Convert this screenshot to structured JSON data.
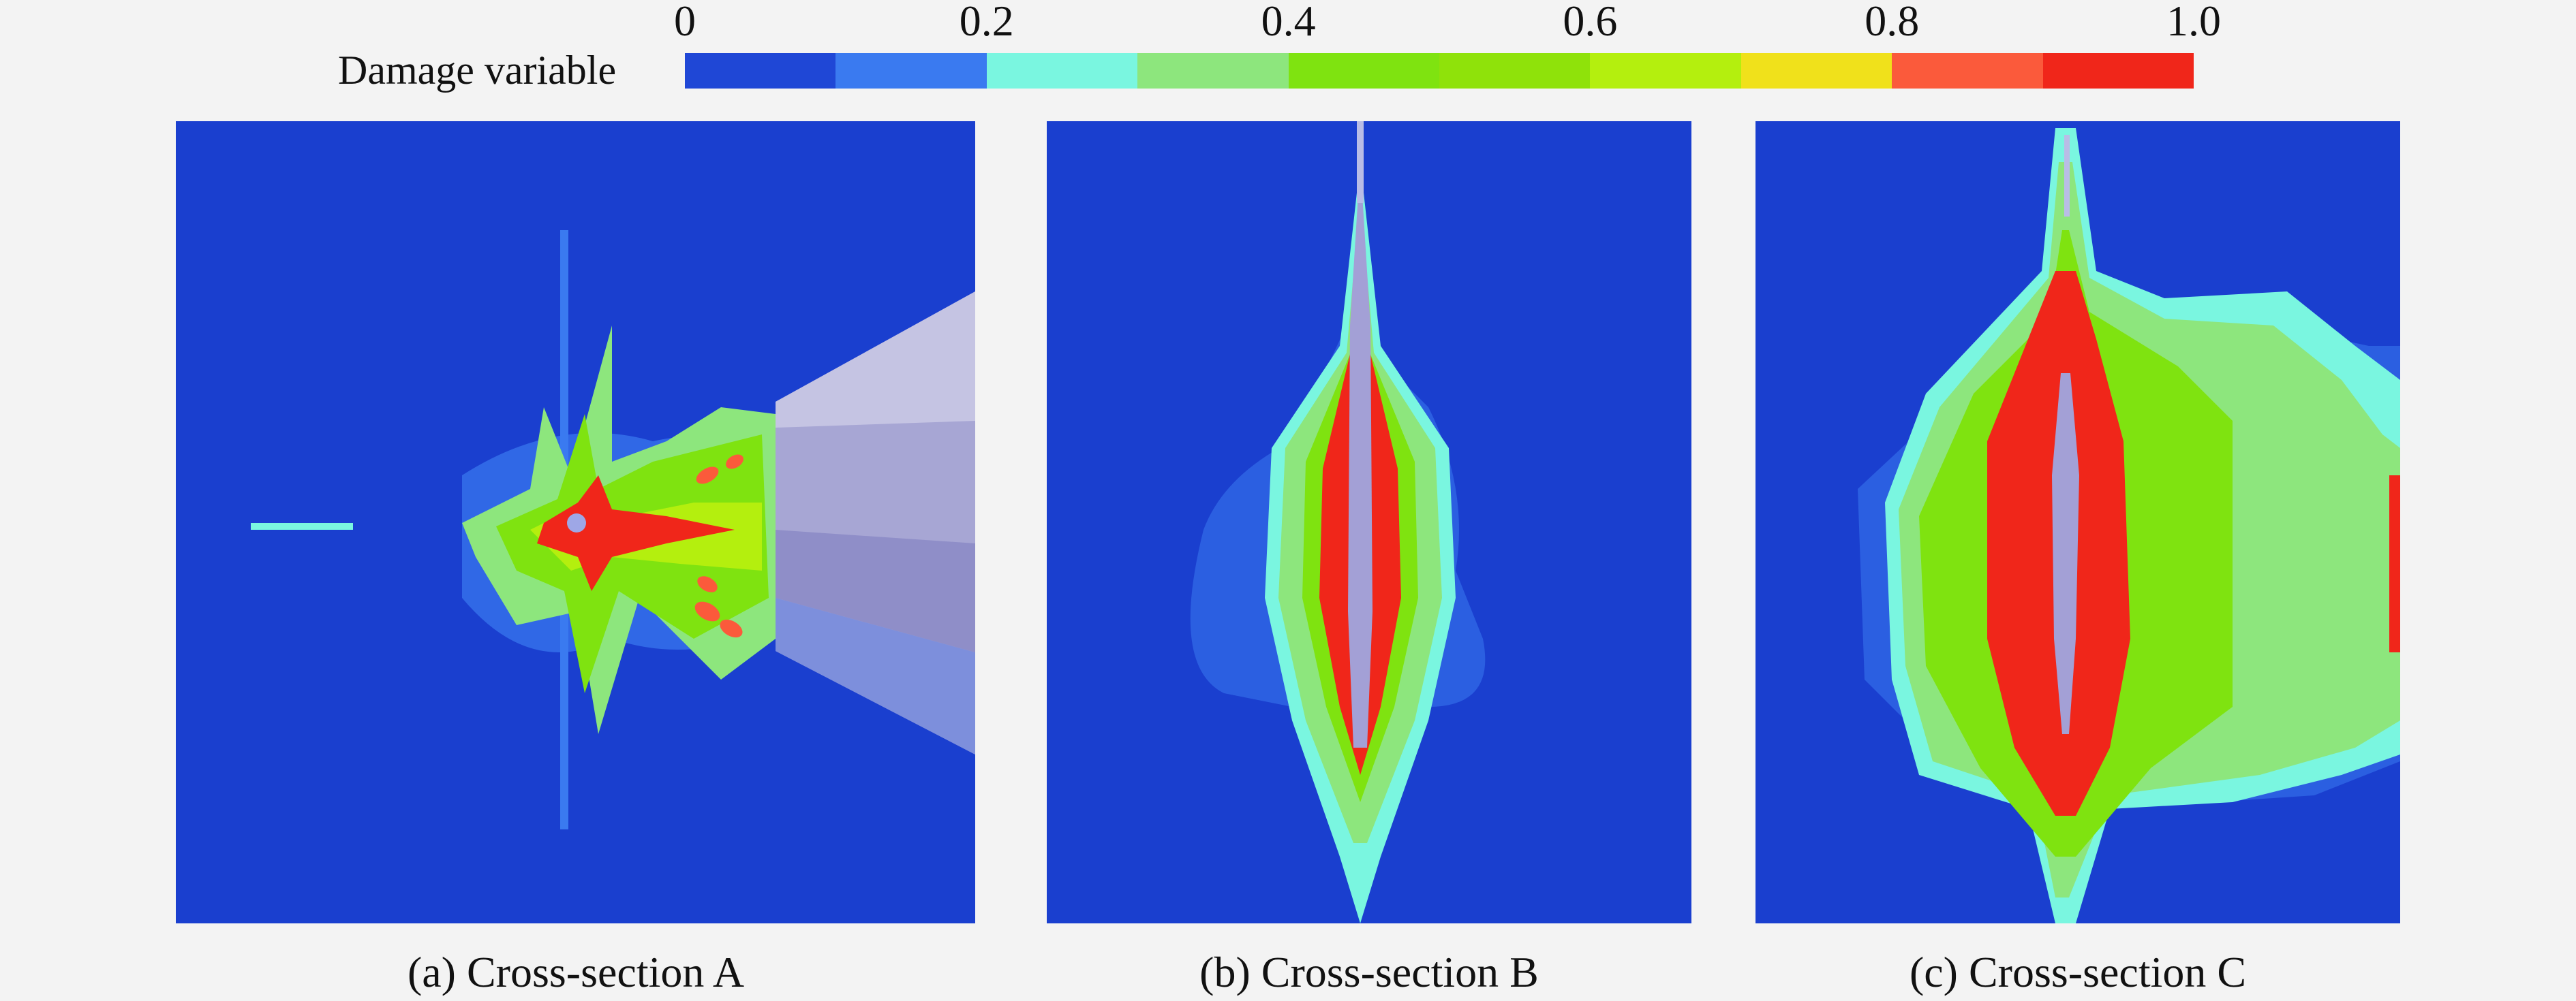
{
  "legend": {
    "title": "Damage variable",
    "ticks": [
      "0",
      "0.2",
      "0.4",
      "0.6",
      "0.8",
      "1.0"
    ],
    "colors": [
      "#1f47d6",
      "#3a7af0",
      "#7af6e0",
      "#8de67d",
      "#7fe310",
      "#8fe20a",
      "#b4ef0e",
      "#f0e11b",
      "#fb5a3b",
      "#f0261a"
    ]
  },
  "panels": [
    {
      "caption": "(a) Cross-section A"
    },
    {
      "caption": "(b) Cross-section B"
    },
    {
      "caption": "(c) Cross-section C"
    }
  ],
  "chart_data": {
    "type": "heatmap",
    "colorbar": {
      "label": "Damage variable",
      "range": [
        0,
        1.0
      ],
      "ticks": [
        0,
        0.2,
        0.4,
        0.6,
        0.8,
        1.0
      ],
      "levels": 10
    },
    "panels": [
      {
        "title": "(a) Cross-section A"
      },
      {
        "title": "(b) Cross-section B"
      },
      {
        "title": "(c) Cross-section C"
      }
    ]
  }
}
